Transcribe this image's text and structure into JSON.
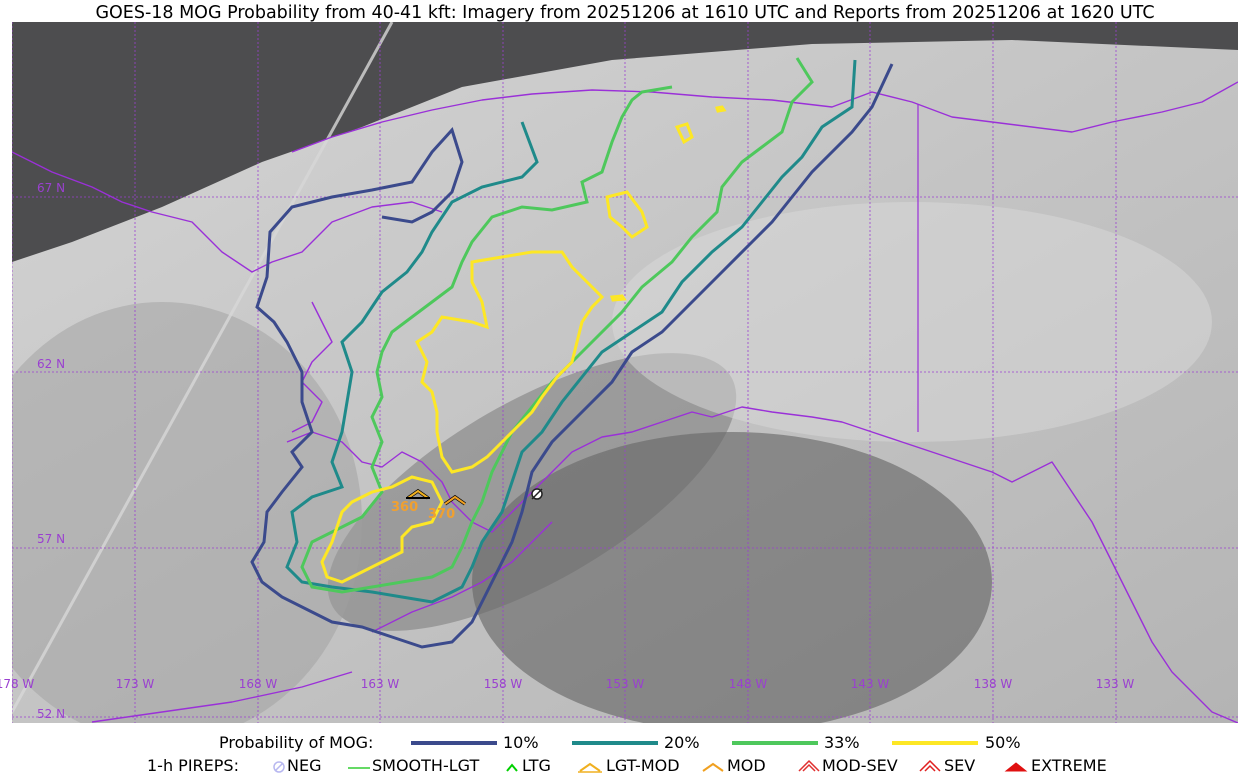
{
  "title": "GOES-18 MOG Probability from 40-41 kft: Imagery from 20251206 at 1610 UTC and Reports from 20251206 at 1620 UTC",
  "map": {
    "latitude_labels": [
      "67 N",
      "62 N",
      "57 N",
      "52 N"
    ],
    "longitude_labels": [
      "178 W",
      "173 W",
      "168 W",
      "163 W",
      "158 W",
      "153 W",
      "148 W",
      "143 W",
      "138 W",
      "133 W"
    ],
    "report_altitudes": [
      "360",
      "370"
    ],
    "colors": {
      "grid": "#9a40d0",
      "coast": "#9a30d8",
      "no_data": "#4d4d4f",
      "report_label": "#f0a030"
    }
  },
  "legend": {
    "probability_title": "Probability of MOG:",
    "levels": [
      {
        "label": "10%",
        "color": "#3b4a8c"
      },
      {
        "label": "20%",
        "color": "#1f8a8a"
      },
      {
        "label": "33%",
        "color": "#4ec85c"
      },
      {
        "label": "50%",
        "color": "#fde725"
      }
    ],
    "pireps_title": "1-h PIREPS:",
    "pireps": [
      {
        "label": "NEG",
        "icon": "neg-icon",
        "color": "#b8b8f0"
      },
      {
        "label": "SMOOTH-LGT",
        "icon": "smooth-lgt-icon",
        "color": "#32cd32"
      },
      {
        "label": "LTG",
        "icon": "ltg-icon",
        "color": "#00d000"
      },
      {
        "label": "LGT-MOD",
        "icon": "lgt-mod-icon",
        "color": "#f0b020"
      },
      {
        "label": "MOD",
        "icon": "mod-icon",
        "color": "#f0a020"
      },
      {
        "label": "MOD-SEV",
        "icon": "mod-sev-icon",
        "color": "#e03030"
      },
      {
        "label": "SEV",
        "icon": "sev-icon",
        "color": "#e02020"
      },
      {
        "label": "EXTREME",
        "icon": "extreme-icon",
        "color": "#e01010"
      }
    ]
  }
}
